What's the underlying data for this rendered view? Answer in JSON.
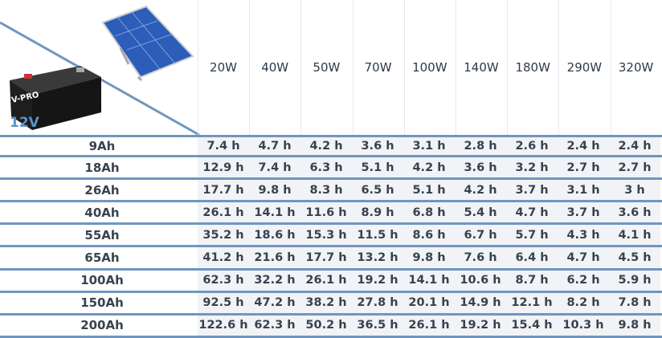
{
  "corner_label": "12V",
  "battery_brand": "V-PRO",
  "columns": [
    "20W",
    "40W",
    "50W",
    "70W",
    "100W",
    "140W",
    "180W",
    "290W",
    "320W"
  ],
  "rows": [
    {
      "label": "9Ah",
      "values": [
        "7.4 h",
        "4.7 h",
        "4.2 h",
        "3.6 h",
        "3.1 h",
        "2.8 h",
        "2.6 h",
        "2.4 h",
        "2.4 h"
      ]
    },
    {
      "label": "18Ah",
      "values": [
        "12.9 h",
        "7.4 h",
        "6.3 h",
        "5.1 h",
        "4.2 h",
        "3.6 h",
        "3.2 h",
        "2.7 h",
        "2.7 h"
      ]
    },
    {
      "label": "26Ah",
      "values": [
        "17.7 h",
        "9.8 h",
        "8.3 h",
        "6.5 h",
        "5.1 h",
        "4.2 h",
        "3.7 h",
        "3.1 h",
        "3 h"
      ]
    },
    {
      "label": "40Ah",
      "values": [
        "26.1 h",
        "14.1 h",
        "11.6 h",
        "8.9 h",
        "6.8 h",
        "5.4 h",
        "4.7 h",
        "3.7 h",
        "3.6 h"
      ]
    },
    {
      "label": "55Ah",
      "values": [
        "35.2 h",
        "18.6 h",
        "15.3 h",
        "11.5 h",
        "8.6 h",
        "6.7 h",
        "5.7 h",
        "4.3 h",
        "4.1 h"
      ]
    },
    {
      "label": "65Ah",
      "values": [
        "41.2 h",
        "21.6 h",
        "17.7 h",
        "13.2 h",
        "9.8 h",
        "7.6 h",
        "6.4 h",
        "4.7 h",
        "4.5 h"
      ]
    },
    {
      "label": "100Ah",
      "values": [
        "62.3 h",
        "32.2 h",
        "26.1 h",
        "19.2 h",
        "14.1 h",
        "10.6 h",
        "8.7 h",
        "6.2 h",
        "5.9 h"
      ]
    },
    {
      "label": "150Ah",
      "values": [
        "92.5 h",
        "47.2 h",
        "38.2 h",
        "27.8 h",
        "20.1 h",
        "14.9 h",
        "12.1 h",
        "8.2 h",
        "7.8 h"
      ]
    },
    {
      "label": "200Ah",
      "values": [
        "122.6 h",
        "62.3 h",
        "50.2 h",
        "36.5 h",
        "26.1 h",
        "19.2 h",
        "15.4 h",
        "10.3 h",
        "9.8 h"
      ]
    }
  ],
  "colors": {
    "separator": "#6f97c0",
    "accent": "#5b93c8",
    "text": "#38424f"
  }
}
